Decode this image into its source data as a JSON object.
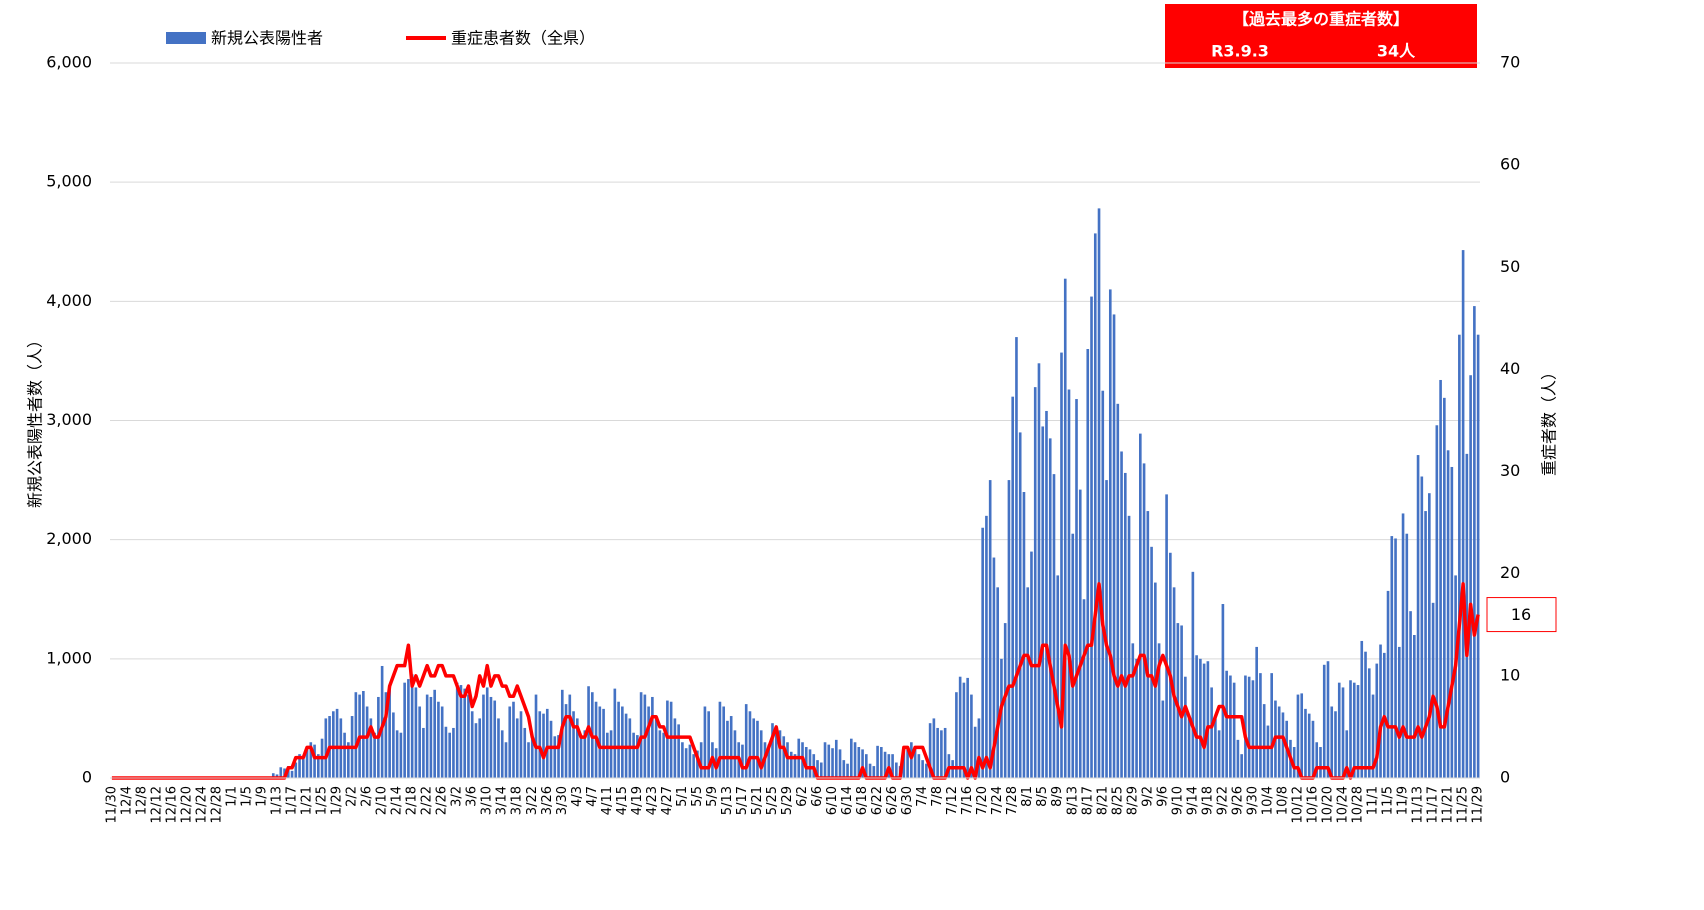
{
  "chart_data": {
    "type": "bar_line",
    "legend_position": "top-left",
    "y_label": "新規公表陽性者数（人）",
    "y2_label": "重症者数（人）",
    "annotation": {
      "title": "【過去最多の重症者数】",
      "date": "R3.9.3",
      "value": "34人"
    },
    "ylim": [
      0,
      6000
    ],
    "yticks": [
      0,
      {
        "value": 1000,
        "label": "1,000"
      },
      {
        "value": 2000,
        "label": "2,000"
      },
      {
        "value": 3000,
        "label": "3,000"
      },
      {
        "value": 4000,
        "label": "4,000"
      },
      {
        "value": 5000,
        "label": "5,000"
      },
      {
        "value": 6000,
        "label": "6,000"
      }
    ],
    "y2lim": [
      0,
      70
    ],
    "y2ticks": [
      0,
      10,
      20,
      30,
      40,
      50,
      60,
      70
    ],
    "grid": true,
    "categories": [
      "11/30",
      null,
      null,
      null,
      "12/4",
      null,
      null,
      null,
      "12/8",
      null,
      null,
      null,
      "12/12",
      null,
      null,
      null,
      "12/16",
      null,
      null,
      null,
      "12/20",
      null,
      null,
      null,
      "12/24",
      null,
      null,
      null,
      "12/28",
      null,
      null,
      null,
      "1/1",
      null,
      null,
      null,
      "1/5",
      null,
      null,
      null,
      "1/9",
      null,
      null,
      null,
      "1/13",
      null,
      null,
      null,
      "1/17",
      null,
      null,
      null,
      "1/21",
      null,
      null,
      null,
      "1/25",
      null,
      null,
      null,
      "1/29",
      null,
      null,
      null,
      "2/2",
      null,
      null,
      null,
      "2/6",
      null,
      null,
      null,
      "2/10",
      null,
      null,
      null,
      "2/14",
      null,
      null,
      null,
      "2/18",
      null,
      null,
      null,
      "2/22",
      null,
      null,
      null,
      "2/26",
      null,
      null,
      null,
      "3/2",
      null,
      null,
      null,
      "3/6",
      null,
      null,
      null,
      "3/10",
      null,
      null,
      null,
      "3/14",
      null,
      null,
      null,
      "3/18",
      null,
      null,
      null,
      "3/22",
      null,
      null,
      null,
      "3/26",
      null,
      null,
      null,
      "3/30",
      null,
      null,
      null,
      "4/3",
      null,
      null,
      null,
      "4/7",
      null,
      null,
      null,
      "4/11",
      null,
      null,
      null,
      "4/15",
      null,
      null,
      null,
      "4/19",
      null,
      null,
      null,
      "4/23",
      null,
      null,
      null,
      "4/27",
      null,
      null,
      null,
      "5/1",
      null,
      null,
      null,
      "5/5",
      null,
      null,
      null,
      "5/9",
      null,
      null,
      null,
      "5/13",
      null,
      null,
      null,
      "5/17",
      null,
      null,
      null,
      "5/21",
      null,
      null,
      null,
      "5/25",
      null,
      null,
      null,
      "5/29",
      null,
      null,
      null,
      "6/2",
      null,
      null,
      null,
      "6/6",
      null,
      null,
      null,
      "6/10",
      null,
      null,
      null,
      "6/14",
      null,
      null,
      null,
      "6/18",
      null,
      null,
      null,
      "6/22",
      null,
      null,
      null,
      "6/26",
      null,
      null,
      null,
      "6/30",
      null,
      null,
      null,
      "7/4",
      null,
      null,
      null,
      "7/8",
      null,
      null,
      null,
      "7/12",
      null,
      null,
      null,
      "7/16",
      null,
      null,
      null,
      "7/20",
      null,
      null,
      null,
      "7/24",
      null,
      null,
      null,
      "7/28",
      null,
      null,
      null,
      "8/1",
      null,
      null,
      null,
      "8/5",
      null,
      null,
      null,
      "8/9",
      null,
      null,
      null,
      "8/13",
      null,
      null,
      null,
      "8/17",
      null,
      null,
      null,
      "8/21",
      null,
      null,
      null,
      "8/25",
      null,
      null,
      null,
      "8/29",
      null,
      null,
      null,
      "9/2",
      null,
      null,
      null,
      "9/6",
      null,
      null,
      null,
      "9/10",
      null,
      null,
      null,
      "9/14",
      null,
      null,
      null,
      "9/18",
      null,
      null,
      null,
      "9/22",
      null,
      null,
      null,
      "9/26",
      null,
      null,
      null,
      "9/30",
      null,
      null,
      null,
      "10/4",
      null,
      null,
      null,
      "10/8",
      null,
      null,
      null,
      "10/12",
      null,
      null,
      null,
      "10/16",
      null,
      null,
      null,
      "10/20",
      null,
      null,
      null,
      "10/24",
      null,
      null,
      null,
      "10/28",
      null,
      null,
      null,
      "11/1",
      null,
      null,
      null,
      "11/5",
      null,
      null,
      null,
      "11/9",
      null,
      null,
      null,
      "11/13",
      null,
      null,
      null,
      "11/17",
      null,
      null,
      null,
      "11/21",
      null,
      null,
      null,
      "11/25",
      null,
      null,
      null,
      "11/29"
    ],
    "series": [
      {
        "name": "新規公表陽性者",
        "type": "bar",
        "color": "#4472c4",
        "values": [
          0,
          0,
          0,
          0,
          0,
          0,
          0,
          0,
          0,
          0,
          0,
          0,
          0,
          0,
          0,
          0,
          0,
          0,
          0,
          0,
          0,
          0,
          0,
          0,
          0,
          0,
          0,
          0,
          0,
          0,
          0,
          0,
          0,
          0,
          0,
          0,
          0,
          0,
          0,
          0,
          0,
          0,
          10,
          40,
          30,
          90,
          80,
          100,
          60,
          130,
          200,
          180,
          250,
          300,
          280,
          200,
          330,
          500,
          520,
          560,
          580,
          500,
          380,
          300,
          520,
          720,
          700,
          730,
          600,
          500,
          380,
          680,
          940,
          720,
          760,
          550,
          400,
          380,
          800,
          830,
          870,
          760,
          600,
          420,
          700,
          680,
          740,
          640,
          600,
          430,
          380,
          420,
          800,
          780,
          750,
          700,
          560,
          460,
          500,
          700,
          760,
          680,
          650,
          500,
          400,
          300,
          600,
          640,
          500,
          560,
          420,
          300,
          350,
          700,
          560,
          540,
          580,
          480,
          350,
          360,
          740,
          620,
          700,
          560,
          500,
          350,
          400,
          770,
          720,
          640,
          600,
          580,
          380,
          400,
          750,
          640,
          600,
          540,
          500,
          380,
          360,
          720,
          700,
          600,
          680,
          520,
          400,
          380,
          650,
          640,
          500,
          450,
          300,
          250,
          280,
          200,
          230,
          300,
          600,
          560,
          300,
          250,
          640,
          600,
          480,
          520,
          400,
          300,
          280,
          620,
          560,
          500,
          480,
          400,
          300,
          280,
          460,
          420,
          400,
          350,
          300,
          220,
          200,
          330,
          300,
          260,
          240,
          200,
          150,
          130,
          300,
          280,
          250,
          320,
          240,
          150,
          120,
          330,
          300,
          260,
          240,
          200,
          120,
          100,
          270,
          260,
          220,
          200,
          200,
          130,
          100,
          250,
          240,
          300,
          250,
          200,
          150,
          120,
          460,
          500,
          420,
          400,
          420,
          200,
          150,
          720,
          850,
          800,
          840,
          700,
          430,
          500,
          2100,
          2200,
          2500,
          1850,
          1600,
          1000,
          1300,
          2500,
          3200,
          3700,
          2900,
          2400,
          1600,
          1900,
          3280,
          3480,
          2950,
          3080,
          2850,
          2550,
          1700,
          3570,
          4190,
          3260,
          2050,
          3180,
          2420,
          1500,
          3600,
          4040,
          4570,
          4780,
          3250,
          2500,
          4100,
          3890,
          3140,
          2740,
          2560,
          2200,
          1130,
          1000,
          2890,
          2640,
          2240,
          1940,
          1640,
          1130,
          650,
          2380,
          1890,
          1600,
          1300,
          1280,
          850,
          500,
          1730,
          1030,
          1000,
          960,
          980,
          760,
          500,
          400,
          1460,
          900,
          860,
          800,
          320,
          200,
          860,
          850,
          820,
          1100,
          880,
          620,
          440,
          880,
          650,
          600,
          550,
          480,
          320,
          260,
          700,
          710,
          580,
          540,
          480,
          300,
          260,
          950,
          980,
          600,
          560,
          800,
          760,
          400,
          820,
          800,
          780,
          1150,
          1060,
          920,
          700,
          960,
          1120,
          1050,
          1570,
          2030,
          2010,
          1100,
          2220,
          2050,
          1400,
          1200,
          2710,
          2530,
          2240,
          2390,
          1470,
          2960,
          3340,
          3190,
          2750,
          2610,
          1700,
          3720,
          4430,
          2720,
          3380,
          3960,
          3720
        ]
      },
      {
        "name": "重症患者数（全県）",
        "type": "line",
        "axis": "y2",
        "color": "#ff0000",
        "values": [
          0,
          0,
          0,
          0,
          0,
          0,
          0,
          0,
          0,
          0,
          0,
          0,
          0,
          0,
          0,
          0,
          0,
          0,
          0,
          0,
          0,
          0,
          0,
          0,
          0,
          0,
          0,
          0,
          0,
          0,
          0,
          0,
          0,
          0,
          0,
          0,
          0,
          0,
          0,
          0,
          0,
          0,
          0,
          0,
          0,
          0,
          0,
          1,
          1,
          2,
          2,
          2,
          3,
          3,
          2,
          2,
          2,
          2,
          3,
          3,
          3,
          3,
          3,
          3,
          3,
          3,
          4,
          4,
          4,
          5,
          4,
          4,
          5,
          6,
          9,
          10,
          11,
          11,
          11,
          13,
          9,
          10,
          9,
          10,
          11,
          10,
          10,
          11,
          11,
          10,
          10,
          10,
          9,
          8,
          8,
          9,
          7,
          8,
          10,
          9,
          11,
          9,
          10,
          10,
          9,
          9,
          8,
          8,
          9,
          8,
          7,
          6,
          4,
          3,
          3,
          2,
          3,
          3,
          3,
          3,
          5,
          6,
          6,
          5,
          5,
          4,
          4,
          5,
          4,
          4,
          3,
          3,
          3,
          3,
          3,
          3,
          3,
          3,
          3,
          3,
          3,
          4,
          4,
          5,
          6,
          6,
          5,
          5,
          4,
          4,
          4,
          4,
          4,
          4,
          4,
          3,
          2,
          1,
          1,
          1,
          2,
          1,
          2,
          2,
          2,
          2,
          2,
          2,
          1,
          1,
          2,
          2,
          2,
          1,
          2,
          3,
          4,
          5,
          3,
          3,
          2,
          2,
          2,
          2,
          2,
          1,
          1,
          1,
          0,
          0,
          0,
          0,
          0,
          0,
          0,
          0,
          0,
          0,
          0,
          0,
          1,
          0,
          0,
          0,
          0,
          0,
          0,
          1,
          0,
          0,
          0,
          3,
          3,
          2,
          3,
          3,
          3,
          2,
          1,
          0,
          0,
          0,
          0,
          1,
          1,
          1,
          1,
          1,
          0,
          1,
          0,
          2,
          1,
          2,
          1,
          3,
          5,
          7,
          8,
          9,
          9,
          10,
          11,
          12,
          12,
          11,
          11,
          11,
          13,
          13,
          11,
          9,
          7,
          5,
          13,
          12,
          9,
          10,
          11,
          12,
          13,
          13,
          16,
          19,
          15,
          13,
          12,
          10,
          9,
          10,
          9,
          10,
          10,
          11,
          12,
          12,
          10,
          10,
          9,
          11,
          12,
          11,
          10,
          8,
          7,
          6,
          7,
          6,
          5,
          4,
          4,
          3,
          5,
          5,
          6,
          7,
          7,
          6,
          6,
          6,
          6,
          6,
          4,
          3,
          3,
          3,
          3,
          3,
          3,
          3,
          4,
          4,
          4,
          3,
          2,
          1,
          1,
          0,
          0,
          0,
          0,
          1,
          1,
          1,
          1,
          0,
          0,
          0,
          0,
          1,
          0,
          1,
          1,
          1,
          1,
          1,
          1,
          2,
          5,
          6,
          5,
          5,
          5,
          4,
          5,
          4,
          4,
          4,
          5,
          4,
          5,
          6,
          8,
          7,
          5,
          5,
          7,
          9,
          11,
          15,
          19,
          12,
          17,
          14,
          16
        ]
      }
    ]
  }
}
